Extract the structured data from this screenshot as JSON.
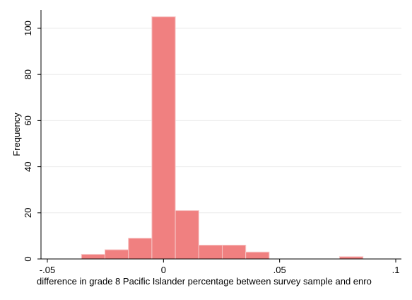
{
  "chart_data": {
    "type": "bar",
    "subtype": "histogram",
    "xlabel": "difference in grade 8 Pacific Islander percentage between survey sample and enro",
    "ylabel": "Frequency",
    "xlim": [
      -0.05,
      0.1
    ],
    "ylim": [
      0,
      107
    ],
    "x_ticks": [
      -0.05,
      0,
      0.05,
      0.1
    ],
    "x_tick_labels": [
      "-.05",
      "0",
      ".05",
      ".1"
    ],
    "y_ticks": [
      0,
      20,
      40,
      60,
      80,
      100
    ],
    "y_tick_labels": [
      "0",
      "20",
      "40",
      "60",
      "80",
      "100"
    ],
    "grid": "horizontal",
    "bar_color": "#f08080",
    "bin_width": 0.0101,
    "bins": [
      {
        "start": -0.0353,
        "count": 2
      },
      {
        "start": -0.0252,
        "count": 4
      },
      {
        "start": -0.0151,
        "count": 9
      },
      {
        "start": -0.005,
        "count": 105
      },
      {
        "start": 0.0051,
        "count": 21
      },
      {
        "start": 0.0152,
        "count": 6
      },
      {
        "start": 0.0253,
        "count": 6
      },
      {
        "start": 0.0354,
        "count": 3
      },
      {
        "start": 0.0455,
        "count": 0
      },
      {
        "start": 0.0556,
        "count": 0
      },
      {
        "start": 0.0657,
        "count": 0
      },
      {
        "start": 0.0758,
        "count": 1
      }
    ]
  }
}
